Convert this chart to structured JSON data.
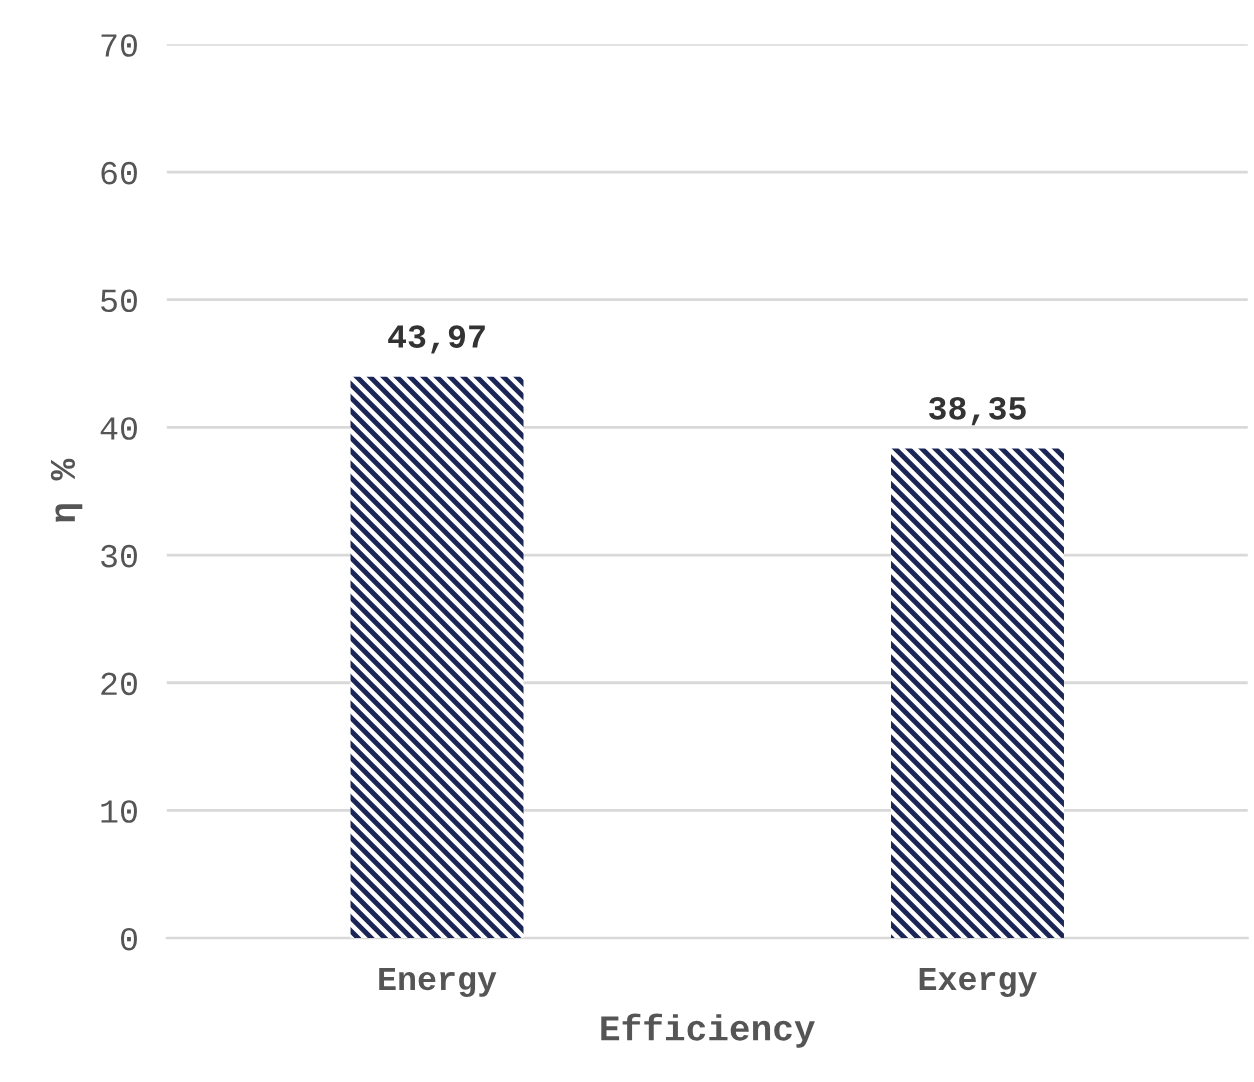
{
  "chart_data": {
    "type": "bar",
    "xlabel": "Efficiency",
    "ylabel": "η %",
    "categories": [
      "Energy",
      "Exergy"
    ],
    "series": [
      {
        "color": "#1b2657",
        "values": [
          43.97,
          38.35
        ],
        "value_labels": [
          "43,97",
          "38,35"
        ]
      }
    ],
    "ylim": [
      0,
      70
    ],
    "yticks": [
      0,
      10,
      20,
      30,
      40,
      50,
      60,
      70
    ],
    "grid": "y",
    "legend": false
  }
}
